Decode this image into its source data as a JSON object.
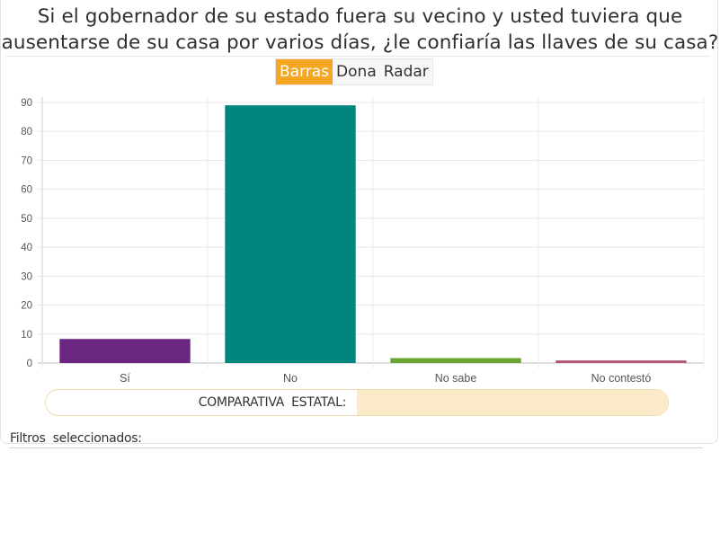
{
  "question": {
    "line1": "Si el gobernador  de su estado  fuera  su vecino  y usted  tuviera  que",
    "line2": "ausentarse  de su casa  por varios  días,  ¿le confiaría  las llaves  de su casa?"
  },
  "tabs": [
    {
      "label": "Barras",
      "active": true
    },
    {
      "label": "Dona",
      "active": false
    },
    {
      "label": "Radar",
      "active": false
    }
  ],
  "chart_data": {
    "type": "bar",
    "categories": [
      "Sí",
      "No",
      "No sabe",
      "No contestó"
    ],
    "values": [
      8.3,
      89.0,
      1.7,
      0.9
    ],
    "colors": [
      "#6a2680",
      "#00857f",
      "#6aa532",
      "#b2567a"
    ],
    "ylim": [
      0,
      90
    ],
    "yticks": [
      0,
      10,
      20,
      30,
      40,
      50,
      60,
      70,
      80,
      90
    ],
    "grid": true
  },
  "comparativa": {
    "label": "COMPARATIVA  ESTATAL:",
    "fill_color": "#fcebc8"
  },
  "filtros": {
    "label": "Filtros  seleccionados:"
  }
}
